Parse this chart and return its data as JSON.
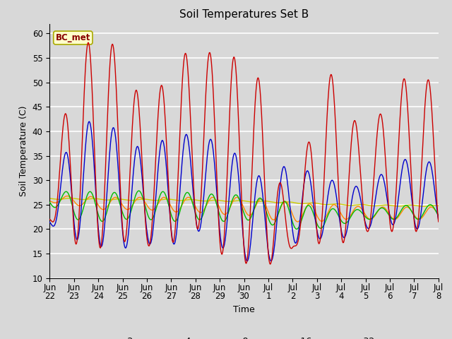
{
  "title": "Soil Temperatures Set B",
  "xlabel": "Time",
  "ylabel": "Soil Temperature (C)",
  "ylim": [
    10,
    62
  ],
  "yticks": [
    10,
    15,
    20,
    25,
    30,
    35,
    40,
    45,
    50,
    55,
    60
  ],
  "bg_color": "#d8d8d8",
  "plot_bg_color": "#d8d8d8",
  "grid_color": "white",
  "annotation_text": "BC_met",
  "annotation_bg": "#ffffcc",
  "annotation_border": "#aaaa00",
  "series_colors": {
    "-2cm": "#cc0000",
    "-4cm": "#0000cc",
    "-8cm": "#00bb00",
    "-16cm": "#ff8800",
    "-32cm": "#cccc00"
  },
  "x_tick_labels": [
    "Jun\n22",
    "Jun\n23",
    "Jun\n24",
    "Jun\n25",
    "Jun\n26",
    "Jun\n27",
    "Jun\n28",
    "Jun\n29",
    "Jun\n30",
    "Jul\n1",
    "Jul\n2",
    "Jul\n3",
    "Jul\n4",
    "Jul\n5",
    "Jul\n6",
    "Jul\n7",
    "Jul\n8"
  ],
  "linewidth": 1.0
}
